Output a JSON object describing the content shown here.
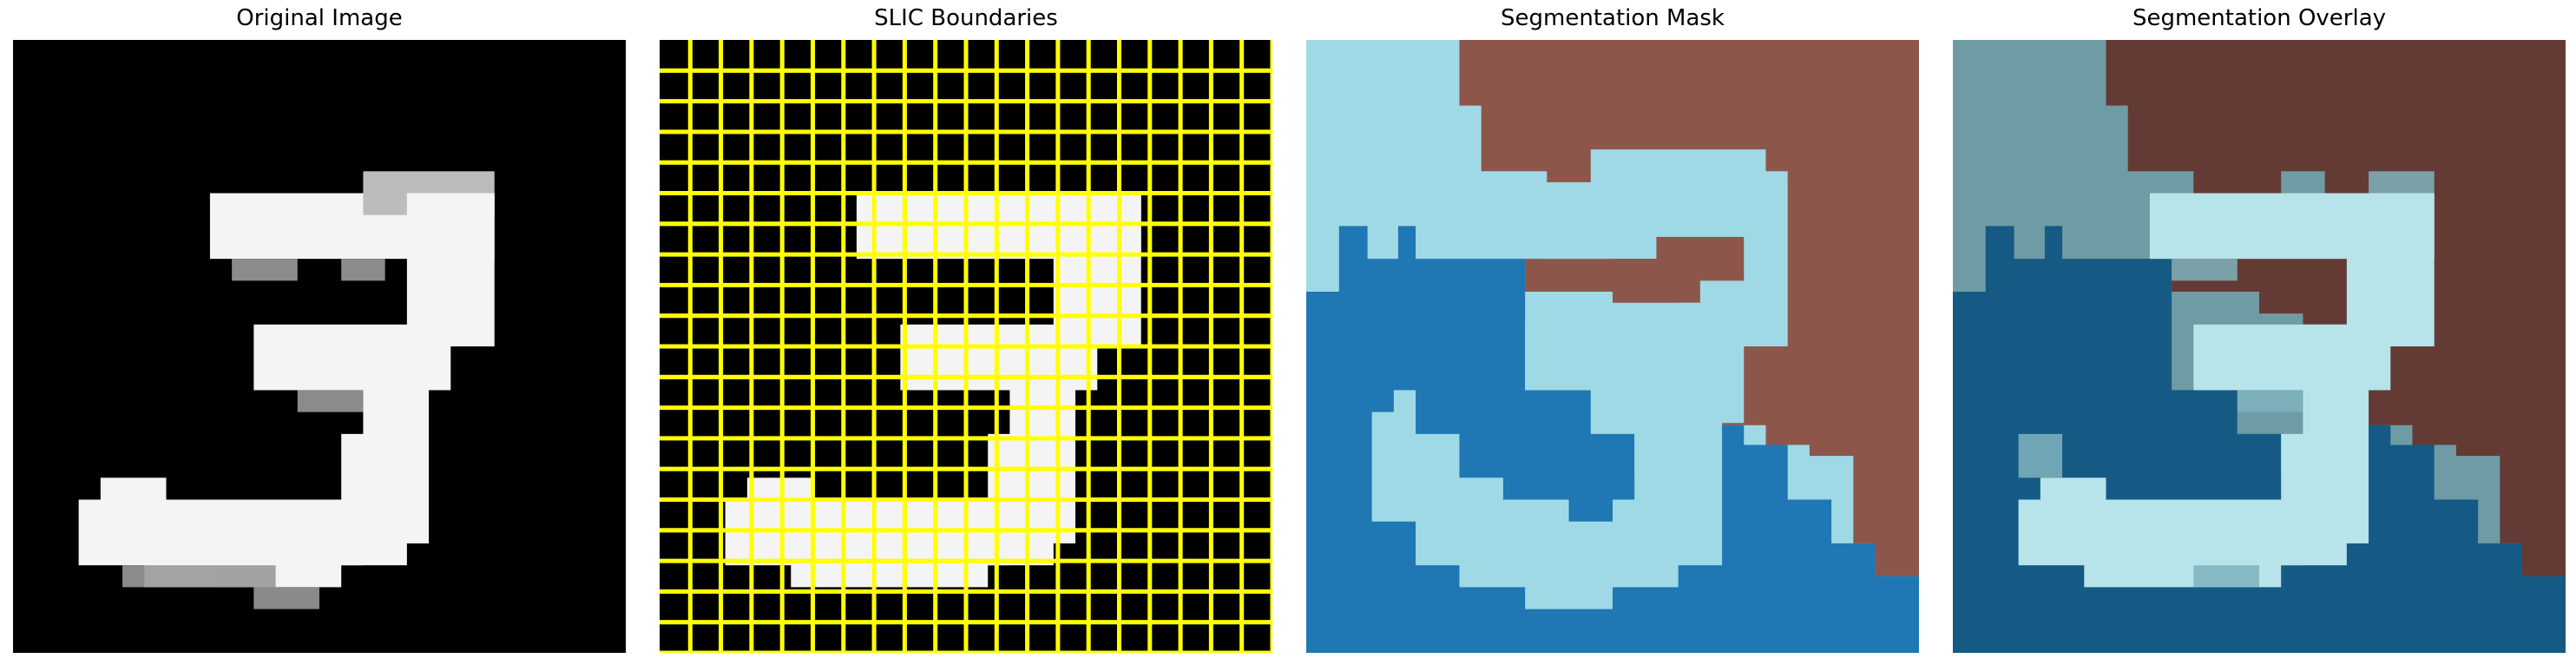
{
  "figure": {
    "panels": [
      {
        "title": "Original Image"
      },
      {
        "title": "SLIC Boundaries"
      },
      {
        "title": "Segmentation Mask"
      },
      {
        "title": "Segmentation Overlay"
      }
    ]
  },
  "colors": {
    "background": "#000000",
    "digit": "#f4f4f4",
    "slic_boundary": "#ffff00",
    "mask_light_blue": "#9fd9e5",
    "mask_blue": "#1f77b4",
    "mask_brown": "#8c564b",
    "overlay_light_blue": "#b7e3ea",
    "overlay_dark_blue": "#155a84",
    "overlay_brown": "#633b34",
    "overlay_teal": "#6f9ba5"
  }
}
